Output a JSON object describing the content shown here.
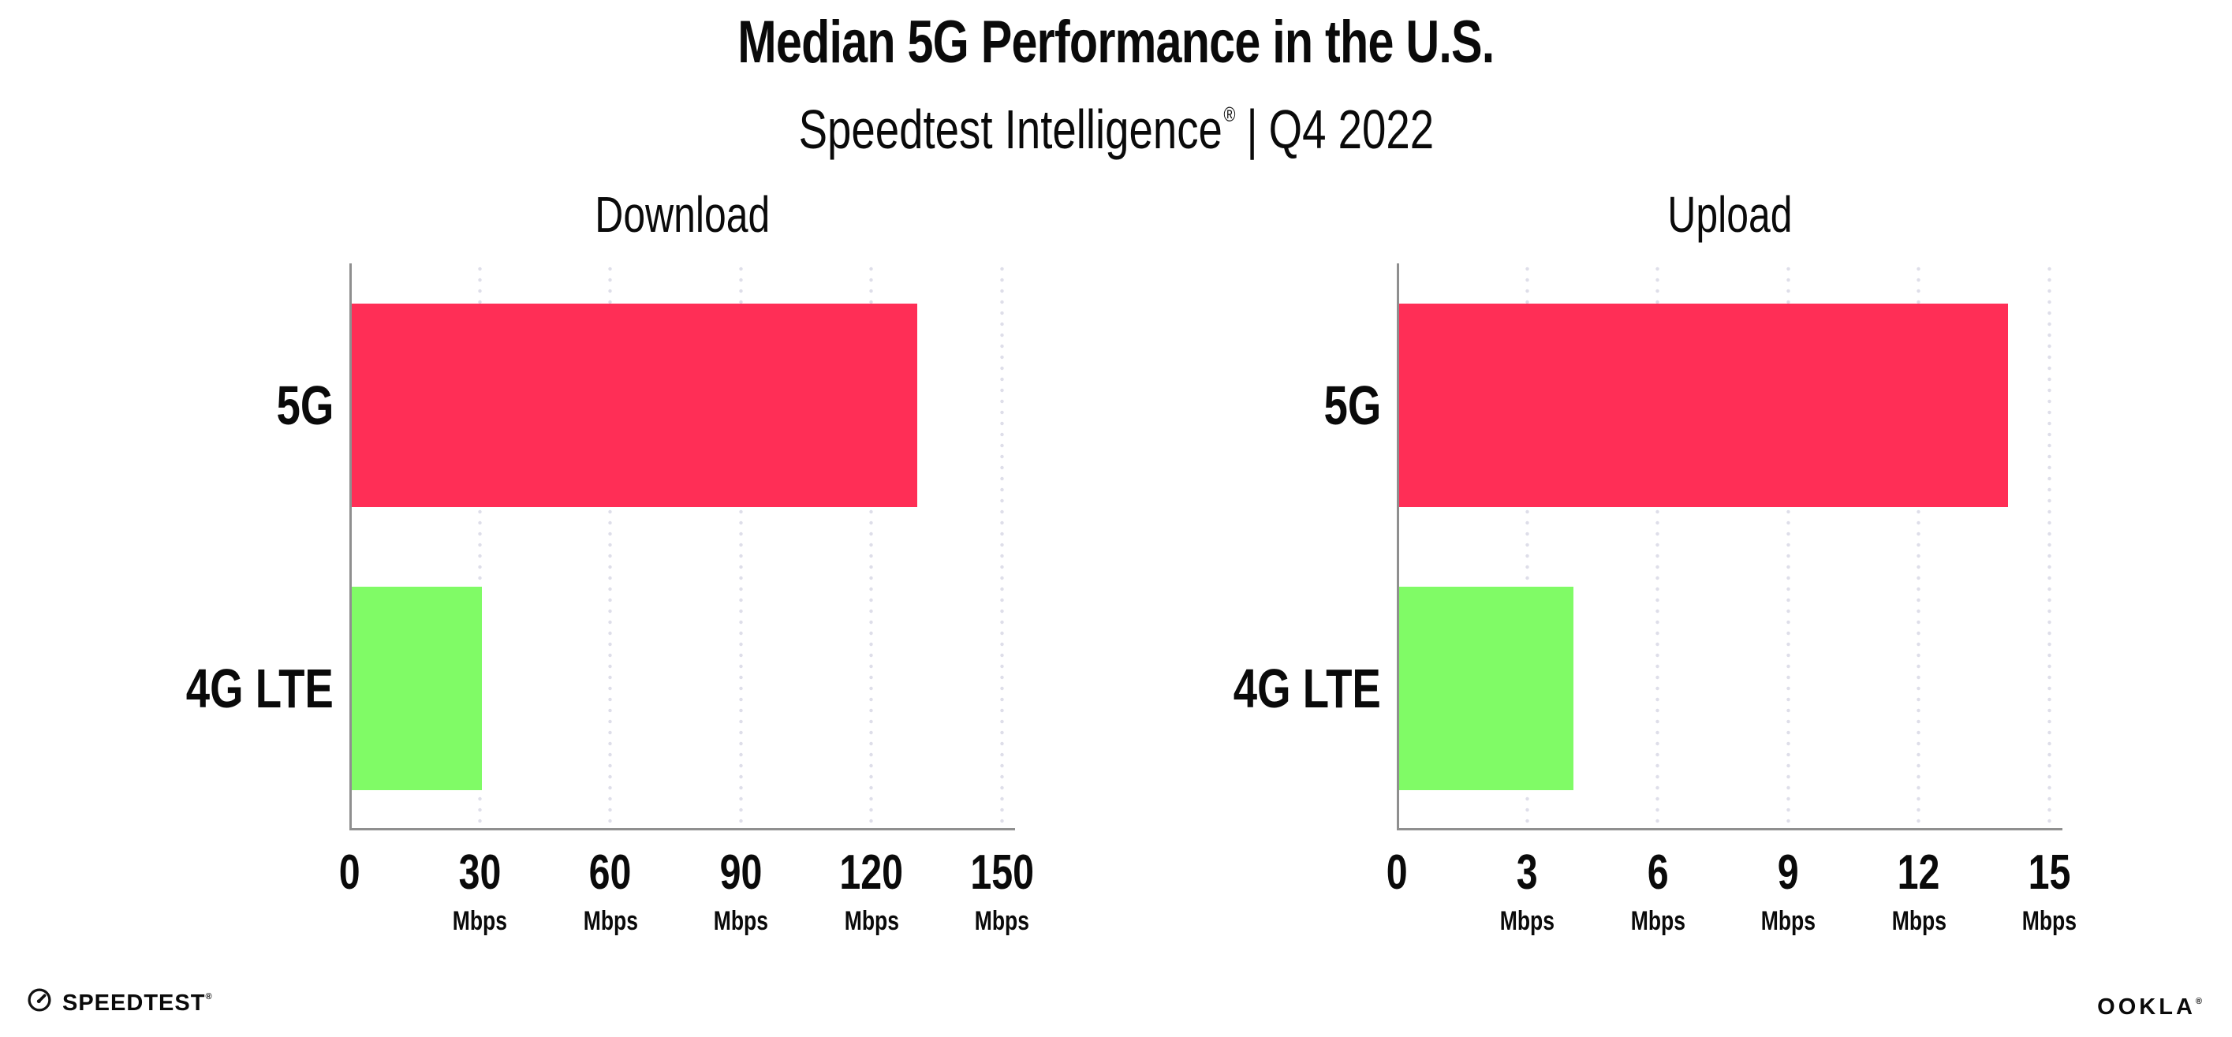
{
  "header": {
    "title": "Median 5G Performance in the U.S.",
    "subtitle": {
      "brand": "Speedtest Intelligence",
      "reg": "®",
      "divider": "|",
      "period": "Q4 2022"
    }
  },
  "chart_data": [
    {
      "type": "bar",
      "orientation": "horizontal",
      "title": "Download",
      "categories": [
        "5G",
        "4G LTE"
      ],
      "values": [
        130,
        30
      ],
      "unit": "Mbps",
      "xlim": [
        0,
        153
      ],
      "xticks": [
        0,
        30,
        60,
        90,
        120,
        150
      ],
      "tick_unit_label": "Mbps",
      "grid": "dotted vertical gridlines at each tick, no gridline at 0",
      "legend": "none",
      "bar_colors": [
        "#FF2E56",
        "#80FB66"
      ]
    },
    {
      "type": "bar",
      "orientation": "horizontal",
      "title": "Upload",
      "categories": [
        "5G",
        "4G LTE"
      ],
      "values": [
        14,
        4
      ],
      "unit": "Mbps",
      "xlim": [
        0,
        15.3
      ],
      "xticks": [
        0,
        3,
        6,
        9,
        12,
        15
      ],
      "tick_unit_label": "Mbps",
      "grid": "dotted vertical gridlines at each tick, no gridline at 0",
      "legend": "none",
      "bar_colors": [
        "#FF2E56",
        "#80FB66"
      ]
    }
  ],
  "footer": {
    "speedtest_logo": "SPEEDTEST",
    "speedtest_reg": "®",
    "speedtest_icon": "gauge-icon",
    "ookla_logo": "OOKLA",
    "ookla_reg": "®"
  },
  "colors": {
    "bar_5g": "#FF2E56",
    "bar_4g_lte": "#80FB66",
    "gridline": "#DEDEE9",
    "axis": "#8F8F8F",
    "text": "#0A0A0A",
    "background": "#FFFFFF"
  }
}
